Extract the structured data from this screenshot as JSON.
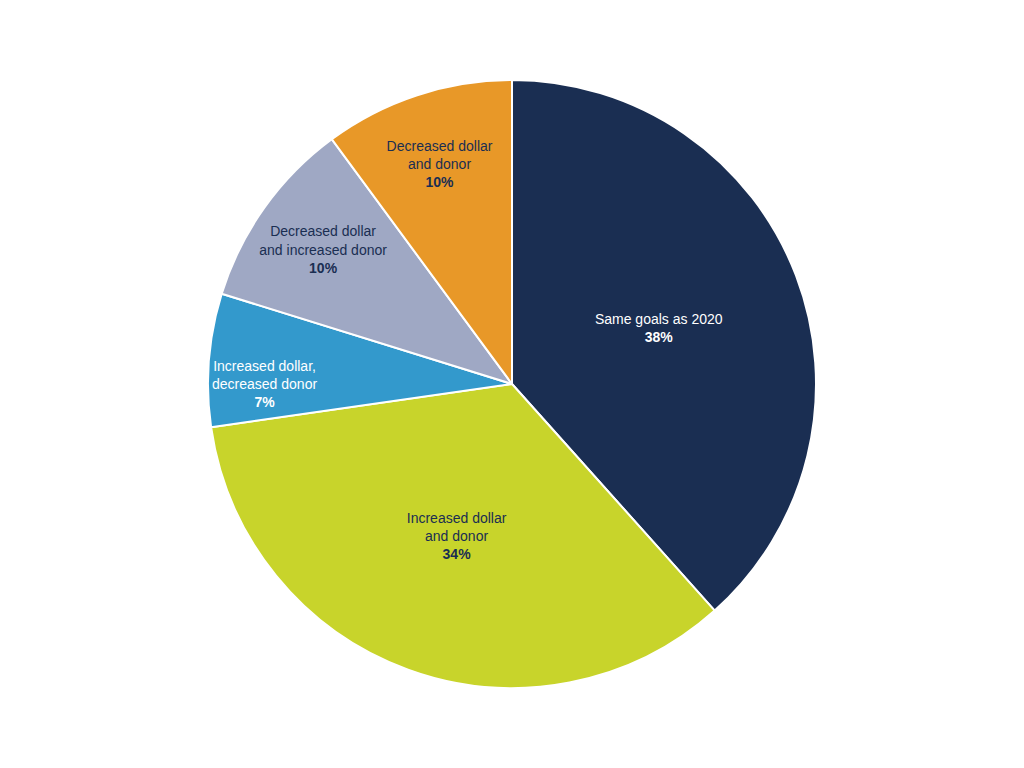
{
  "chart_data": {
    "type": "pie",
    "categories": [
      "Same goals as 2020",
      "Increased dollar\nand donor",
      "Increased dollar,\ndecreased donor",
      "Decreased dollar\nand increased donor",
      "Decreased dollar\nand donor"
    ],
    "values": [
      38,
      34,
      7,
      10,
      10
    ],
    "value_labels": [
      "38%",
      "34%",
      "7%",
      "10%",
      "10%"
    ],
    "colors": [
      "#1a2e52",
      "#c8d42b",
      "#3399cc",
      "#9fa8c4",
      "#e89828"
    ],
    "data_labels": true
  }
}
